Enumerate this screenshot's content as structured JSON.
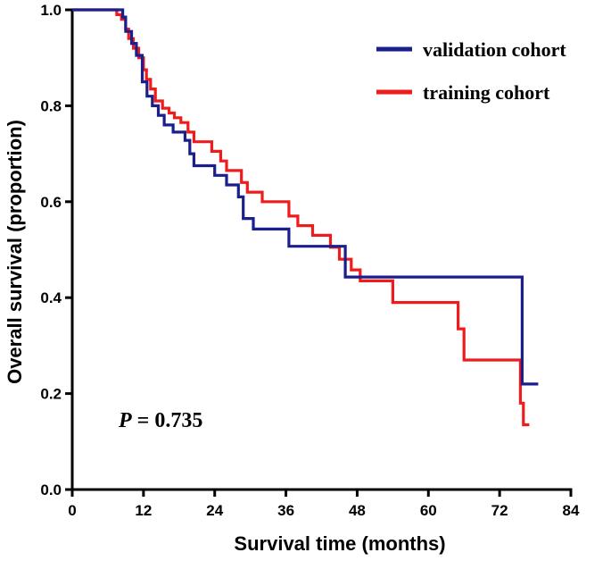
{
  "chart_data": {
    "type": "line",
    "step": true,
    "xlabel": "Survival time (months)",
    "ylabel": "Overall survival (proportion)",
    "xlim": [
      0,
      84
    ],
    "ylim": [
      0,
      1.0
    ],
    "xticks": [
      0,
      12,
      24,
      36,
      48,
      60,
      72,
      84
    ],
    "yticks": [
      0.0,
      0.2,
      0.4,
      0.6,
      0.8,
      1.0
    ],
    "ytick_labels": [
      "0.0",
      "0.2",
      "0.4",
      "0.6",
      "0.8",
      "1.0"
    ],
    "grid": false,
    "legend_position": "top-right",
    "annotation": {
      "italic": "P",
      "text": " = 0.735"
    },
    "series": [
      {
        "name": "validation cohort",
        "color": "#1a1f8c",
        "points": [
          [
            0,
            1.0
          ],
          [
            8.5,
            1.0
          ],
          [
            8.5,
            0.985
          ],
          [
            9.0,
            0.985
          ],
          [
            9.0,
            0.955
          ],
          [
            10.0,
            0.955
          ],
          [
            10.0,
            0.93
          ],
          [
            10.8,
            0.93
          ],
          [
            10.8,
            0.905
          ],
          [
            11.8,
            0.905
          ],
          [
            11.8,
            0.85
          ],
          [
            12.6,
            0.85
          ],
          [
            12.6,
            0.82
          ],
          [
            13.5,
            0.82
          ],
          [
            13.5,
            0.8
          ],
          [
            14.5,
            0.8
          ],
          [
            14.5,
            0.78
          ],
          [
            15.5,
            0.78
          ],
          [
            15.5,
            0.76
          ],
          [
            17.0,
            0.76
          ],
          [
            17.0,
            0.745
          ],
          [
            19.0,
            0.745
          ],
          [
            19.0,
            0.728
          ],
          [
            19.8,
            0.728
          ],
          [
            19.8,
            0.7
          ],
          [
            20.5,
            0.7
          ],
          [
            20.5,
            0.675
          ],
          [
            24.0,
            0.675
          ],
          [
            24.0,
            0.655
          ],
          [
            26.0,
            0.655
          ],
          [
            26.0,
            0.635
          ],
          [
            28.0,
            0.635
          ],
          [
            28.0,
            0.61
          ],
          [
            28.8,
            0.61
          ],
          [
            28.8,
            0.565
          ],
          [
            30.5,
            0.565
          ],
          [
            30.5,
            0.543
          ],
          [
            36.5,
            0.543
          ],
          [
            36.5,
            0.507
          ],
          [
            46.0,
            0.507
          ],
          [
            46.0,
            0.443
          ],
          [
            75.8,
            0.443
          ],
          [
            75.8,
            0.22
          ],
          [
            78.5,
            0.22
          ]
        ]
      },
      {
        "name": "training cohort",
        "color": "#ee1c1c",
        "points": [
          [
            0,
            1.0
          ],
          [
            7.5,
            1.0
          ],
          [
            7.5,
            0.99
          ],
          [
            8.3,
            0.99
          ],
          [
            8.3,
            0.98
          ],
          [
            9.0,
            0.98
          ],
          [
            9.0,
            0.96
          ],
          [
            9.5,
            0.96
          ],
          [
            9.5,
            0.94
          ],
          [
            10.3,
            0.94
          ],
          [
            10.3,
            0.92
          ],
          [
            11.2,
            0.92
          ],
          [
            11.2,
            0.9
          ],
          [
            12.0,
            0.9
          ],
          [
            12.0,
            0.875
          ],
          [
            12.5,
            0.875
          ],
          [
            12.5,
            0.855
          ],
          [
            13.2,
            0.855
          ],
          [
            13.2,
            0.835
          ],
          [
            14.0,
            0.835
          ],
          [
            14.0,
            0.81
          ],
          [
            15.2,
            0.81
          ],
          [
            15.2,
            0.795
          ],
          [
            16.3,
            0.795
          ],
          [
            16.3,
            0.785
          ],
          [
            17.2,
            0.785
          ],
          [
            17.2,
            0.775
          ],
          [
            18.3,
            0.775
          ],
          [
            18.3,
            0.765
          ],
          [
            19.5,
            0.765
          ],
          [
            19.5,
            0.745
          ],
          [
            20.5,
            0.745
          ],
          [
            20.5,
            0.725
          ],
          [
            23.5,
            0.725
          ],
          [
            23.5,
            0.705
          ],
          [
            25.0,
            0.705
          ],
          [
            25.0,
            0.685
          ],
          [
            26.0,
            0.685
          ],
          [
            26.0,
            0.665
          ],
          [
            28.5,
            0.665
          ],
          [
            28.5,
            0.64
          ],
          [
            29.5,
            0.64
          ],
          [
            29.5,
            0.62
          ],
          [
            32.0,
            0.62
          ],
          [
            32.0,
            0.6
          ],
          [
            36.5,
            0.6
          ],
          [
            36.5,
            0.57
          ],
          [
            38.0,
            0.57
          ],
          [
            38.0,
            0.55
          ],
          [
            40.5,
            0.55
          ],
          [
            40.5,
            0.53
          ],
          [
            43.5,
            0.53
          ],
          [
            43.5,
            0.505
          ],
          [
            45.0,
            0.505
          ],
          [
            45.0,
            0.48
          ],
          [
            47.0,
            0.48
          ],
          [
            47.0,
            0.458
          ],
          [
            48.5,
            0.458
          ],
          [
            48.5,
            0.435
          ],
          [
            54.0,
            0.435
          ],
          [
            54.0,
            0.39
          ],
          [
            65.0,
            0.39
          ],
          [
            65.0,
            0.335
          ],
          [
            66.0,
            0.335
          ],
          [
            66.0,
            0.27
          ],
          [
            75.5,
            0.27
          ],
          [
            75.5,
            0.18
          ],
          [
            76.0,
            0.18
          ],
          [
            76.0,
            0.135
          ],
          [
            77.0,
            0.135
          ]
        ]
      }
    ]
  }
}
